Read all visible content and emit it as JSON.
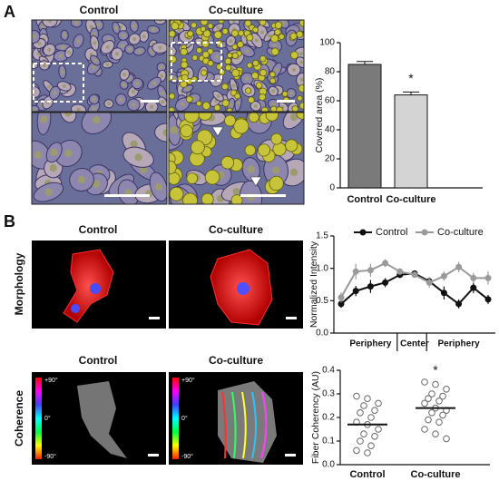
{
  "figure": {
    "panel_a": {
      "label": "A",
      "columns": [
        "Control",
        "Co-culture"
      ]
    },
    "panel_b": {
      "label": "B",
      "columns_top": [
        "Control",
        "Co-culture"
      ],
      "columns_bottom": [
        "Control",
        "Co-culture"
      ],
      "rows": [
        "Morphology",
        "Coherence"
      ],
      "colorbar": [
        "+90°",
        "0°",
        "-90°"
      ]
    }
  },
  "chart_data": [
    {
      "type": "bar",
      "ylabel": "Covered area (%)",
      "categories": [
        "Control",
        "Co-culture"
      ],
      "values": [
        85,
        64
      ],
      "errors": [
        2,
        2
      ],
      "colors": [
        "#7a7a7a",
        "#d4d4d4"
      ],
      "annotations": [
        null,
        "*"
      ],
      "ylim": [
        0,
        100
      ],
      "yticks": [
        0,
        20,
        40,
        60,
        80,
        100
      ]
    },
    {
      "type": "line",
      "ylabel": "Normalized Intensity",
      "legend": "top",
      "categories": [
        null,
        null,
        null,
        null,
        null,
        null,
        null,
        null,
        null,
        null,
        null
      ],
      "x_regions": [
        "Periphery",
        "Center",
        "Periphery"
      ],
      "series": [
        {
          "name": "Control",
          "color": "#111111",
          "values": [
            0.45,
            0.65,
            0.72,
            0.78,
            0.9,
            0.92,
            0.8,
            0.62,
            0.45,
            0.7,
            0.52
          ],
          "errors": [
            0.06,
            0.08,
            0.1,
            0.07,
            0.05,
            0.04,
            0.06,
            0.1,
            0.07,
            0.08,
            0.07
          ]
        },
        {
          "name": "Co-culture",
          "color": "#9a9a9a",
          "values": [
            0.55,
            0.95,
            0.97,
            1.08,
            0.95,
            0.9,
            0.78,
            0.88,
            1.02,
            0.85,
            0.85
          ],
          "errors": [
            0.08,
            0.12,
            0.1,
            0.06,
            0.05,
            0.04,
            0.08,
            0.07,
            0.08,
            0.08,
            0.1
          ]
        }
      ],
      "ylim": [
        0,
        1.5
      ],
      "yticks": [
        {
          "value": 0,
          "label": "0.0"
        },
        {
          "value": 0.5,
          "label": "0.5"
        },
        {
          "value": 1,
          "label": "1.0"
        },
        {
          "value": 1.5,
          "label": "1.5"
        }
      ]
    },
    {
      "type": "dot",
      "ylabel": "Fiber Coherency (AU)",
      "categories": [
        "Control",
        "Co-culture"
      ],
      "annotations": [
        null,
        "*"
      ],
      "groups": [
        {
          "values": [
            0.29,
            0.28,
            0.26,
            0.25,
            0.23,
            0.22,
            0.2,
            0.18,
            0.17,
            0.15,
            0.13,
            0.12,
            0.1,
            0.08,
            0.06,
            0.05
          ],
          "mean": 0.17
        },
        {
          "values": [
            0.35,
            0.34,
            0.32,
            0.3,
            0.29,
            0.28,
            0.27,
            0.26,
            0.24,
            0.23,
            0.22,
            0.21,
            0.19,
            0.18,
            0.15,
            0.13,
            0.11
          ],
          "mean": 0.24
        }
      ],
      "ylim": [
        0,
        0.4
      ],
      "yticks": [
        {
          "value": 0,
          "label": "0.0"
        },
        {
          "value": 0.1,
          "label": "0.1"
        },
        {
          "value": 0.2,
          "label": "0.2"
        },
        {
          "value": 0.3,
          "label": "0.3"
        },
        {
          "value": 0.4,
          "label": "0.4"
        }
      ]
    }
  ]
}
